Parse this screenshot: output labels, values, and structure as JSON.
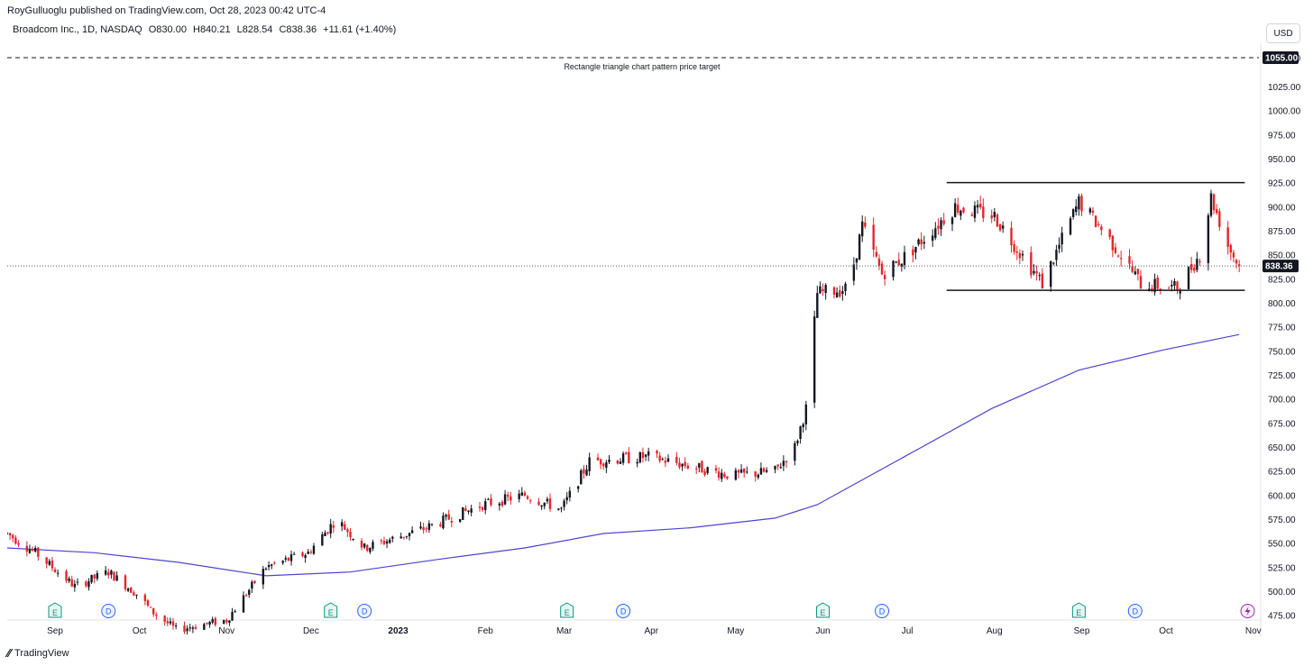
{
  "header": {
    "publisher": "RoyGulluoglu published on TradingView.com, Oct 28, 2023 00:42 UTC-4",
    "symbol": "Broadcom Inc., 1D, NASDAQ",
    "open": "O830.00",
    "high": "H840.21",
    "low": "L828.54",
    "close": "C838.36",
    "change": "+11.61 (+1.40%)",
    "currency": "USD"
  },
  "footer": {
    "brand": "TradingView",
    "logo_icon": "tradingview-logo-icon"
  },
  "colors": {
    "up": "#131722",
    "down": "#e5252a",
    "ma": "#4b47d1",
    "price_label": "#131722"
  },
  "chart_data": {
    "type": "candlestick",
    "y_range": [
      470,
      1070
    ],
    "y_ticks": [
      475,
      500,
      525,
      550,
      575,
      600,
      625,
      650,
      675,
      700,
      725,
      750,
      775,
      800,
      825,
      850,
      875,
      900,
      925,
      950,
      975,
      1000,
      1025,
      1055
    ],
    "y_tick_labels": [
      "475.00",
      "500.00",
      "525.00",
      "550.00",
      "575.00",
      "600.00",
      "625.00",
      "650.00",
      "675.00",
      "700.00",
      "725.00",
      "750.00",
      "775.00",
      "800.00",
      "825.00",
      "850.00",
      "875.00",
      "900.00",
      "925.00",
      "950.00",
      "975.00",
      "1000.00",
      "1025.00",
      "1055.00"
    ],
    "x_range": [
      "2022-08-15",
      "2023-11-03"
    ],
    "x_ticks": [
      {
        "date": "2022-09-01",
        "label": "Sep"
      },
      {
        "date": "2022-10-01",
        "label": "Oct"
      },
      {
        "date": "2022-11-01",
        "label": "Nov"
      },
      {
        "date": "2022-12-01",
        "label": "Dec"
      },
      {
        "date": "2023-01-01",
        "label": "2023"
      },
      {
        "date": "2023-02-01",
        "label": "Feb"
      },
      {
        "date": "2023-03-01",
        "label": "Mar"
      },
      {
        "date": "2023-04-01",
        "label": "Apr"
      },
      {
        "date": "2023-05-01",
        "label": "May"
      },
      {
        "date": "2023-06-01",
        "label": "Jun"
      },
      {
        "date": "2023-07-01",
        "label": "Jul"
      },
      {
        "date": "2023-08-01",
        "label": "Aug"
      },
      {
        "date": "2023-09-01",
        "label": "Sep"
      },
      {
        "date": "2023-10-01",
        "label": "Oct"
      },
      {
        "date": "2023-11-01",
        "label": "Nov"
      }
    ],
    "price_path": [
      [
        "2022-08-15",
        560
      ],
      [
        "2022-08-25",
        540
      ],
      [
        "2022-09-08",
        505
      ],
      [
        "2022-09-20",
        520
      ],
      [
        "2022-10-01",
        495
      ],
      [
        "2022-10-05",
        480
      ],
      [
        "2022-10-14",
        460
      ],
      [
        "2022-11-01",
        470
      ],
      [
        "2022-11-15",
        525
      ],
      [
        "2022-11-30",
        540
      ],
      [
        "2022-12-10",
        575
      ],
      [
        "2022-12-20",
        545
      ],
      [
        "2023-01-10",
        565
      ],
      [
        "2023-01-31",
        590
      ],
      [
        "2023-02-15",
        600
      ],
      [
        "2023-02-28",
        585
      ],
      [
        "2023-03-10",
        635
      ],
      [
        "2023-03-31",
        640
      ],
      [
        "2023-04-15",
        630
      ],
      [
        "2023-04-30",
        620
      ],
      [
        "2023-05-15",
        625
      ],
      [
        "2023-05-22",
        650
      ],
      [
        "2023-05-26",
        690
      ],
      [
        "2023-05-30",
        810
      ],
      [
        "2023-06-10",
        815
      ],
      [
        "2023-06-15",
        880
      ],
      [
        "2023-06-22",
        830
      ],
      [
        "2023-07-01",
        850
      ],
      [
        "2023-07-18",
        900
      ],
      [
        "2023-08-01",
        890
      ],
      [
        "2023-08-18",
        820
      ],
      [
        "2023-08-31",
        905
      ],
      [
        "2023-09-10",
        870
      ],
      [
        "2023-09-22",
        820
      ],
      [
        "2023-10-05",
        815
      ],
      [
        "2023-10-13",
        850
      ],
      [
        "2023-10-17",
        910
      ],
      [
        "2023-10-23",
        860
      ],
      [
        "2023-10-27",
        838
      ]
    ],
    "moving_average": [
      [
        "2022-08-15",
        545
      ],
      [
        "2022-09-15",
        540
      ],
      [
        "2022-10-15",
        530
      ],
      [
        "2022-11-15",
        516
      ],
      [
        "2022-12-15",
        520
      ],
      [
        "2023-01-15",
        533
      ],
      [
        "2023-02-15",
        545
      ],
      [
        "2023-03-15",
        560
      ],
      [
        "2023-04-15",
        566
      ],
      [
        "2023-05-15",
        576
      ],
      [
        "2023-05-30",
        590
      ],
      [
        "2023-06-30",
        640
      ],
      [
        "2023-07-31",
        690
      ],
      [
        "2023-08-31",
        730
      ],
      [
        "2023-09-30",
        751
      ],
      [
        "2023-10-27",
        767
      ]
    ],
    "horizontal_lines": [
      {
        "name": "price-target",
        "value": 1055,
        "style": "dashed",
        "label": "Rectangle triangle chart pattern price target",
        "tag": "1055.00"
      },
      {
        "name": "resistance",
        "value": 925,
        "style": "solid",
        "from": "2023-07-15",
        "to": "2023-10-29"
      },
      {
        "name": "support",
        "value": 813,
        "style": "solid",
        "from": "2023-07-15",
        "to": "2023-10-29"
      },
      {
        "name": "last-price",
        "value": 838.36,
        "style": "dotted",
        "tag": "838.36"
      }
    ],
    "events": [
      {
        "date": "2022-09-01",
        "type": "E"
      },
      {
        "date": "2022-09-20",
        "type": "D"
      },
      {
        "date": "2022-12-08",
        "type": "E"
      },
      {
        "date": "2022-12-20",
        "type": "D"
      },
      {
        "date": "2023-03-02",
        "type": "E"
      },
      {
        "date": "2023-03-22",
        "type": "D"
      },
      {
        "date": "2023-06-01",
        "type": "E"
      },
      {
        "date": "2023-06-22",
        "type": "D"
      },
      {
        "date": "2023-08-31",
        "type": "E"
      },
      {
        "date": "2023-09-20",
        "type": "D"
      },
      {
        "date": "2023-10-30",
        "type": "split-icon"
      }
    ]
  }
}
